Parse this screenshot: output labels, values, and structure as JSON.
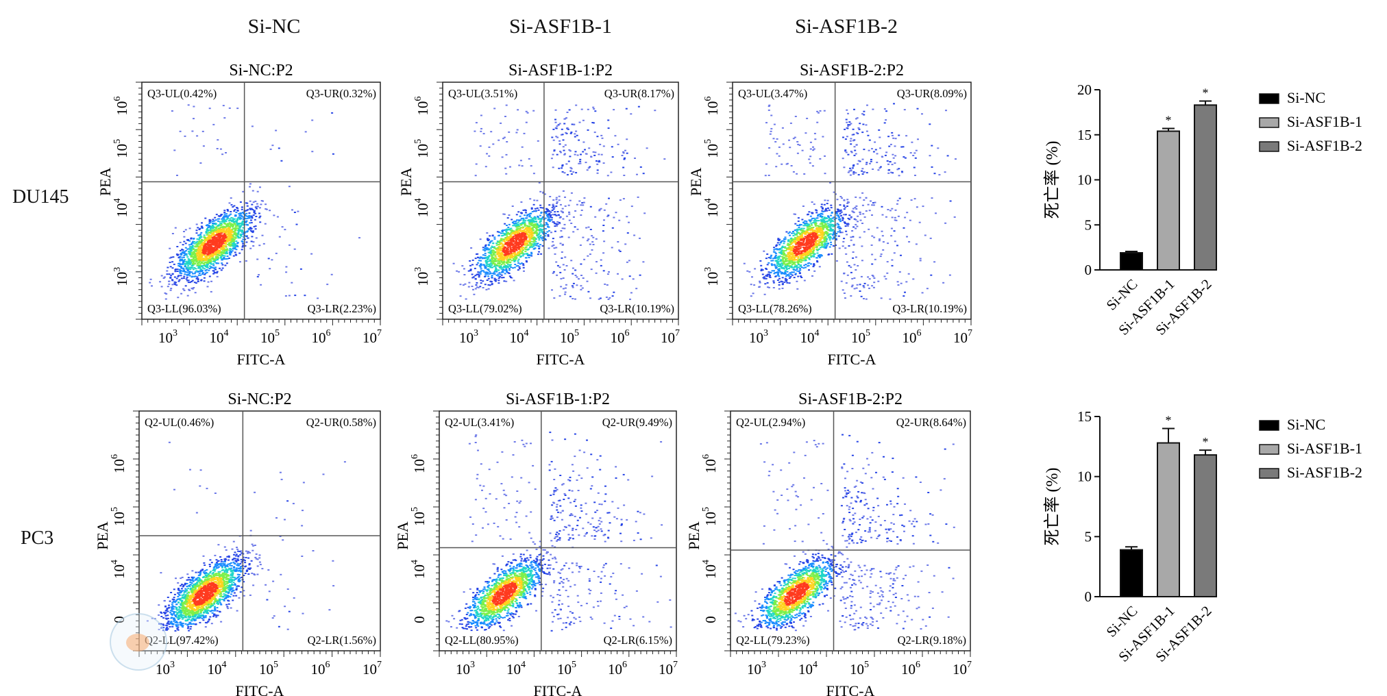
{
  "column_headers": [
    "Si-NC",
    "Si-ASF1B-1",
    "Si-ASF1B-2"
  ],
  "row_labels": [
    "DU145",
    "PC3"
  ],
  "chart_data": [
    {
      "type": "scatter",
      "row": "DU145",
      "title": "Si-NC:P2",
      "xlabel": "FITC-A",
      "ylabel": "PEA",
      "xticks": [
        "10^3",
        "10^4",
        "10^5",
        "10^6",
        "10^7"
      ],
      "yticks": [
        "10^3",
        "10^4",
        "10^5",
        "10^6"
      ],
      "quadrants": {
        "UL": "Q3-UL(0.42%)",
        "UR": "Q3-UR(0.32%)",
        "LL": "Q3-LL(96.03%)",
        "LR": "Q3-LR(2.23%)"
      },
      "quadrant_percent": {
        "UL": 0.42,
        "UR": 0.32,
        "LL": 96.03,
        "LR": 2.23
      }
    },
    {
      "type": "scatter",
      "row": "DU145",
      "title": "Si-ASF1B-1:P2",
      "xlabel": "FITC-A",
      "ylabel": "PEA",
      "xticks": [
        "10^3",
        "10^4",
        "10^5",
        "10^6",
        "10^7"
      ],
      "yticks": [
        "10^3",
        "10^4",
        "10^5",
        "10^6"
      ],
      "quadrants": {
        "UL": "Q3-UL(3.51%)",
        "UR": "Q3-UR(8.17%)",
        "LL": "Q3-LL(79.02%)",
        "LR": "Q3-LR(10.19%)"
      },
      "quadrant_percent": {
        "UL": 3.51,
        "UR": 8.17,
        "LL": 79.02,
        "LR": 10.19
      }
    },
    {
      "type": "scatter",
      "row": "DU145",
      "title": "Si-ASF1B-2:P2",
      "xlabel": "FITC-A",
      "ylabel": "PEA",
      "xticks": [
        "10^3",
        "10^4",
        "10^5",
        "10^6",
        "10^7"
      ],
      "yticks": [
        "10^3",
        "10^4",
        "10^5",
        "10^6"
      ],
      "quadrants": {
        "UL": "Q3-UL(3.47%)",
        "UR": "Q3-UR(8.09%)",
        "LL": "Q3-LL(78.26%)",
        "LR": "Q3-LR(10.19%)"
      },
      "quadrant_percent": {
        "UL": 3.47,
        "UR": 8.09,
        "LL": 78.26,
        "LR": 10.19
      }
    },
    {
      "type": "scatter",
      "row": "PC3",
      "title": "Si-NC:P2",
      "xlabel": "FITC-A",
      "ylabel": "PEA",
      "xticks": [
        "10^3",
        "10^4",
        "10^5",
        "10^6",
        "10^7"
      ],
      "yticks": [
        "0",
        "10^4",
        "10^5",
        "10^6"
      ],
      "quadrants": {
        "UL": "Q2-UL(0.46%)",
        "UR": "Q2-UR(0.58%)",
        "LL": "Q2-LL(97.42%)",
        "LR": "Q2-LR(1.56%)"
      },
      "quadrant_percent": {
        "UL": 0.46,
        "UR": 0.58,
        "LL": 97.42,
        "LR": 1.56
      }
    },
    {
      "type": "scatter",
      "row": "PC3",
      "title": "Si-ASF1B-1:P2",
      "xlabel": "FITC-A",
      "ylabel": "PEA",
      "xticks": [
        "10^3",
        "10^4",
        "10^5",
        "10^6",
        "10^7"
      ],
      "yticks": [
        "0",
        "10^4",
        "10^5",
        "10^6"
      ],
      "quadrants": {
        "UL": "Q2-UL(3.41%)",
        "UR": "Q2-UR(9.49%)",
        "LL": "Q2-LL(80.95%)",
        "LR": "Q2-LR(6.15%)"
      },
      "quadrant_percent": {
        "UL": 3.41,
        "UR": 9.49,
        "LL": 80.95,
        "LR": 6.15
      }
    },
    {
      "type": "scatter",
      "row": "PC3",
      "title": "Si-ASF1B-2:P2",
      "xlabel": "FITC-A",
      "ylabel": "PEA",
      "xticks": [
        "10^3",
        "10^4",
        "10^5",
        "10^6",
        "10^7"
      ],
      "yticks": [
        "0",
        "10^4",
        "10^5",
        "10^6"
      ],
      "quadrants": {
        "UL": "Q2-UL(2.94%)",
        "UR": "Q2-UR(8.64%)",
        "LL": "Q2-LL(79.23%)",
        "LR": "Q2-LR(9.18%)"
      },
      "quadrant_percent": {
        "UL": 2.94,
        "UR": 8.64,
        "LL": 79.23,
        "LR": 9.18
      }
    },
    {
      "type": "bar",
      "row": "DU145",
      "title": "",
      "ylabel": "死亡率 (%)",
      "xlabel": "",
      "categories": [
        "Si-NC",
        "Si-ASF1B-1",
        "Si-ASF1B-2"
      ],
      "values": [
        1.9,
        15.4,
        18.3
      ],
      "errors": [
        0.15,
        0.3,
        0.45
      ],
      "significance": [
        "",
        "*",
        "*"
      ],
      "ylim": [
        0,
        20
      ],
      "yticks": [
        0,
        5,
        10,
        15,
        20
      ],
      "legend": [
        "Si-NC",
        "Si-ASF1B-1",
        "Si-ASF1B-2"
      ],
      "colors": [
        "#000000",
        "#a8a8a8",
        "#7a7a7a"
      ]
    },
    {
      "type": "bar",
      "row": "PC3",
      "title": "",
      "ylabel": "死亡率 (%)",
      "xlabel": "",
      "categories": [
        "Si-NC",
        "Si-ASF1B-1",
        "Si-ASF1B-2"
      ],
      "values": [
        3.9,
        12.8,
        11.8
      ],
      "errors": [
        0.25,
        1.2,
        0.4
      ],
      "significance": [
        "",
        "*",
        "*"
      ],
      "ylim": [
        0,
        15
      ],
      "yticks": [
        0,
        5,
        10,
        15
      ],
      "legend": [
        "Si-NC",
        "Si-ASF1B-1",
        "Si-ASF1B-2"
      ],
      "colors": [
        "#000000",
        "#a8a8a8",
        "#7a7a7a"
      ]
    }
  ]
}
